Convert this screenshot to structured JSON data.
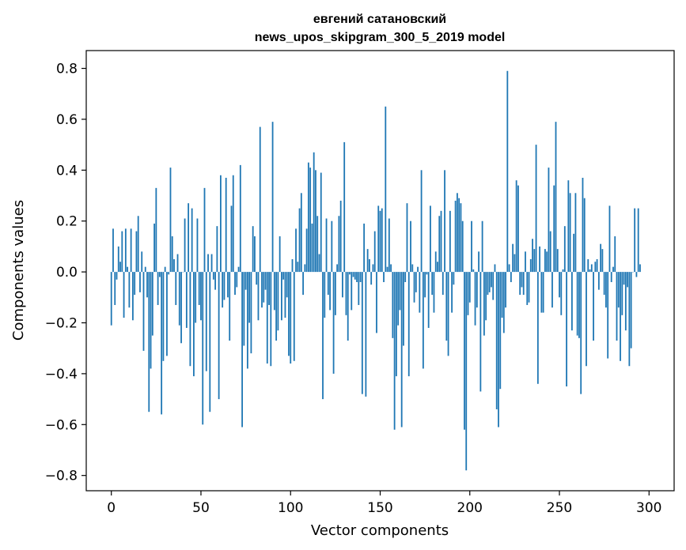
{
  "chart_data": {
    "type": "bar",
    "title_lines": [
      "евгений сатановский",
      "news_upos_skipgram_300_5_2019 model"
    ],
    "xlabel": "Vector components",
    "ylabel": "Components values",
    "xlim": [
      -14,
      314
    ],
    "ylim": [
      -0.86,
      0.87
    ],
    "xticks": [
      0,
      50,
      100,
      150,
      200,
      250,
      300
    ],
    "xtick_labels": [
      "0",
      "50",
      "100",
      "150",
      "200",
      "250",
      "300"
    ],
    "yticks": [
      0.8,
      0.6,
      0.4,
      0.2,
      0.0,
      -0.2,
      -0.4,
      -0.6,
      -0.8
    ],
    "ytick_labels": [
      "0.8",
      "0.6",
      "0.4",
      "0.2",
      "0.0",
      "−0.2",
      "−0.4",
      "−0.6",
      "−0.8"
    ],
    "bar_color": "#1f77b4",
    "values": [
      -0.21,
      0.17,
      -0.13,
      -0.03,
      0.1,
      0.04,
      0.16,
      -0.18,
      0.17,
      0.02,
      -0.14,
      0.17,
      -0.19,
      -0.09,
      0.16,
      0.22,
      -0.08,
      0.08,
      -0.31,
      0.02,
      -0.1,
      -0.55,
      -0.38,
      -0.25,
      0.19,
      0.33,
      -0.13,
      -0.02,
      -0.56,
      -0.35,
      0.02,
      -0.33,
      -0.01,
      0.41,
      0.14,
      0.05,
      -0.13,
      0.07,
      -0.21,
      -0.28,
      0.0,
      0.21,
      -0.22,
      0.27,
      -0.37,
      0.25,
      -0.41,
      -0.2,
      0.21,
      -0.13,
      -0.19,
      -0.6,
      0.33,
      -0.39,
      0.07,
      -0.55,
      0.07,
      -0.03,
      -0.07,
      0.18,
      -0.5,
      0.38,
      -0.14,
      -0.11,
      0.37,
      -0.1,
      -0.27,
      0.26,
      0.38,
      -0.09,
      -0.06,
      0.02,
      0.42,
      -0.61,
      -0.29,
      -0.07,
      -0.38,
      -0.2,
      -0.32,
      0.18,
      0.14,
      -0.05,
      -0.19,
      0.57,
      -0.14,
      -0.12,
      -0.07,
      -0.36,
      -0.13,
      -0.37,
      0.59,
      -0.15,
      -0.27,
      -0.23,
      0.14,
      -0.19,
      -0.03,
      -0.18,
      -0.1,
      -0.33,
      -0.36,
      0.05,
      -0.35,
      0.17,
      0.04,
      0.25,
      0.31,
      -0.09,
      0.03,
      0.17,
      0.43,
      0.41,
      0.19,
      0.47,
      0.4,
      0.22,
      0.07,
      0.39,
      -0.5,
      -0.18,
      0.21,
      -0.09,
      -0.15,
      0.2,
      -0.4,
      -0.17,
      0.03,
      0.22,
      0.28,
      -0.1,
      0.51,
      -0.17,
      -0.27,
      -0.01,
      -0.15,
      -0.02,
      -0.03,
      -0.04,
      -0.13,
      -0.04,
      -0.48,
      0.19,
      -0.49,
      0.09,
      0.05,
      -0.05,
      0.03,
      0.16,
      -0.24,
      0.26,
      0.24,
      0.25,
      -0.04,
      0.65,
      0.02,
      0.21,
      0.03,
      -0.26,
      -0.62,
      -0.41,
      -0.21,
      -0.15,
      -0.61,
      -0.29,
      -0.04,
      0.27,
      -0.41,
      0.2,
      0.03,
      -0.12,
      -0.08,
      0.02,
      -0.16,
      0.4,
      -0.38,
      -0.1,
      -0.01,
      -0.22,
      0.26,
      -0.09,
      -0.16,
      0.08,
      0.04,
      0.22,
      0.24,
      -0.09,
      0.4,
      -0.27,
      -0.33,
      0.24,
      -0.16,
      -0.05,
      0.28,
      0.31,
      0.29,
      0.27,
      0.2,
      -0.62,
      -0.78,
      -0.17,
      -0.12,
      0.2,
      0.01,
      -0.21,
      -0.14,
      0.08,
      -0.47,
      0.2,
      -0.25,
      -0.19,
      -0.09,
      -0.08,
      -0.06,
      -0.11,
      0.03,
      -0.54,
      -0.61,
      -0.46,
      -0.18,
      -0.24,
      -0.14,
      0.79,
      0.03,
      -0.04,
      0.11,
      0.07,
      0.36,
      0.34,
      -0.09,
      -0.06,
      -0.09,
      0.08,
      -0.13,
      -0.12,
      0.05,
      0.13,
      0.09,
      0.5,
      -0.44,
      0.1,
      -0.16,
      -0.16,
      0.09,
      0.08,
      0.41,
      0.16,
      -0.14,
      0.34,
      0.59,
      0.09,
      -0.1,
      -0.17,
      0.01,
      0.18,
      -0.45,
      0.36,
      0.31,
      -0.23,
      0.15,
      0.31,
      -0.25,
      -0.26,
      -0.48,
      0.37,
      0.29,
      -0.37,
      0.05,
      0.01,
      0.03,
      -0.27,
      0.04,
      0.05,
      -0.07,
      0.11,
      0.09,
      -0.09,
      -0.14,
      -0.34,
      0.26,
      -0.04,
      0.02,
      0.14,
      -0.27,
      -0.14,
      -0.35,
      -0.17,
      -0.05,
      -0.23,
      -0.06,
      -0.37,
      -0.3,
      0.0,
      0.25,
      -0.02,
      0.25,
      0.03
    ]
  }
}
